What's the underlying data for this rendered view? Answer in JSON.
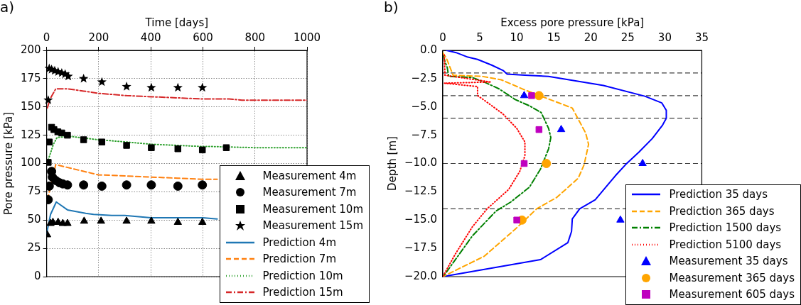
{
  "chart_data": [
    {
      "type": "line",
      "title": "a)",
      "xlabel": "Time [days]",
      "ylabel": "Pore pressure [kPa]",
      "xlim": [
        0,
        1000
      ],
      "xticks": [
        0,
        200,
        400,
        600,
        800,
        1000
      ],
      "ylim": [
        0,
        200
      ],
      "yticks": [
        0,
        25,
        50,
        75,
        100,
        125,
        150,
        175,
        200
      ],
      "grid": true,
      "legend": "bottom right",
      "series": [
        {
          "name": "Measurement 4m",
          "type": "scatter",
          "marker": "triangle",
          "color": "#000000",
          "x": [
            2,
            15,
            24,
            44,
            62,
            80,
            144,
            209,
            307,
            402,
            504,
            598
          ],
          "values": [
            37,
            47,
            48,
            48,
            47,
            47,
            49,
            49,
            49,
            49,
            48,
            48
          ]
        },
        {
          "name": "Measurement 7m",
          "type": "scatter",
          "marker": "circle",
          "color": "#000000",
          "x": [
            6,
            10,
            19,
            22,
            35,
            49,
            62,
            80,
            142,
            212,
            307,
            402,
            504,
            598
          ],
          "values": [
            68,
            80,
            93,
            88,
            85,
            83,
            82,
            81,
            81,
            80,
            81,
            81,
            80,
            81
          ]
        },
        {
          "name": "Measurement 10m",
          "type": "scatter",
          "marker": "square",
          "color": "#000000",
          "x": [
            6,
            10,
            19,
            28,
            43,
            58,
            80,
            142,
            212,
            307,
            402,
            504,
            598,
            690
          ],
          "values": [
            101,
            119,
            132,
            130,
            128,
            127,
            125,
            121,
            119,
            116,
            114,
            113,
            112,
            114
          ]
        },
        {
          "name": "Measurement 15m",
          "type": "scatter",
          "marker": "star",
          "color": "#000000",
          "x": [
            6,
            10,
            19,
            31,
            44,
            58,
            71,
            83,
            142,
            212,
            307,
            402,
            504,
            598
          ],
          "values": [
            156,
            184,
            183,
            182,
            181,
            180,
            179,
            177,
            175,
            172,
            168,
            167,
            167,
            167
          ]
        },
        {
          "name": "Prediction 4m",
          "type": "line",
          "line_style": "solid",
          "color": "#1f77b4",
          "x": [
            0,
            15,
            37,
            80,
            150,
            180,
            250,
            300,
            400,
            600,
            655
          ],
          "values": [
            38,
            55,
            66,
            59,
            56,
            55,
            54,
            54,
            52,
            52,
            51
          ]
        },
        {
          "name": "Prediction 7m",
          "type": "line",
          "line_style": "dashed",
          "color": "#ff7f0e",
          "x": [
            3,
            35,
            198,
            307,
            402,
            504,
            598,
            655
          ],
          "values": [
            68,
            99,
            90,
            89,
            88,
            87,
            86,
            86
          ]
        },
        {
          "name": "Prediction 10m",
          "type": "line",
          "line_style": "dotted",
          "color": "#2ca02c",
          "x": [
            3,
            26,
            40,
            90,
            198,
            307,
            402,
            504,
            598,
            633,
            800,
            1000
          ],
          "values": [
            101,
            117,
            123,
            124,
            121,
            119,
            117,
            116,
            115,
            115,
            114,
            114
          ]
        },
        {
          "name": "Prediction 15m",
          "type": "line",
          "line_style": "dashdot",
          "color": "#d62728",
          "x": [
            3,
            13,
            35,
            80,
            142,
            200,
            307,
            402,
            504,
            598,
            700,
            750,
            1000
          ],
          "values": [
            149,
            157,
            166,
            166,
            164,
            162,
            160,
            159,
            158,
            157,
            157,
            156,
            156
          ]
        }
      ]
    },
    {
      "type": "line",
      "title": "b)",
      "xlabel": "Excess pore pressure [kPa]",
      "ylabel": "Depth [m]",
      "xlim": [
        0,
        35
      ],
      "xticks": [
        0,
        5,
        10,
        15,
        20,
        25,
        30,
        35
      ],
      "ylim": [
        -20,
        0
      ],
      "yticks": [
        {
          "value": 0,
          "label": "0.0"
        },
        {
          "value": -2.5,
          "label": "−2.5"
        },
        {
          "value": -5,
          "label": "−5.0"
        },
        {
          "value": -7.5,
          "label": "−7.5"
        },
        {
          "value": -10,
          "label": "−10.0"
        },
        {
          "value": -12.5,
          "label": "−12.5"
        },
        {
          "value": -15,
          "label": "−15.0"
        },
        {
          "value": -17.5,
          "label": "−17.5"
        },
        {
          "value": -20,
          "label": "−20.0"
        }
      ],
      "legend": "bottom right",
      "ref_lines": [
        {
          "axis": "y",
          "value": -2,
          "color": "#404040",
          "line_style": "dashed"
        },
        {
          "axis": "y",
          "value": -4,
          "color": "#404040",
          "line_style": "dashed"
        },
        {
          "axis": "y",
          "value": -6,
          "color": "#404040",
          "line_style": "dashed"
        },
        {
          "axis": "y",
          "value": -10,
          "color": "#404040",
          "line_style": "dashed"
        },
        {
          "axis": "y",
          "value": -14,
          "color": "#404040",
          "line_style": "dashed"
        }
      ],
      "series": [
        {
          "name": "Prediction 35 days",
          "type": "line",
          "line_style": "solid",
          "color": "#0000ff",
          "x": [
            0.5,
            1.8,
            3.4,
            4.7,
            6.6,
            8.2,
            8.7,
            11.1,
            14.3,
            20.7,
            21.7,
            27.3,
            29.6,
            30.2,
            30.2,
            29.7,
            28.3,
            26.5,
            24.7,
            23.3,
            20.6,
            18.5,
            17.5,
            17.4,
            16.9,
            13.2,
            0
          ],
          "values": [
            0,
            -0.2,
            -0.6,
            -0.8,
            -1.3,
            -1.8,
            -2.1,
            -2.2,
            -2.3,
            -3.0,
            -3.1,
            -4.05,
            -4.65,
            -5.3,
            -6.0,
            -6.6,
            -7.8,
            -9.0,
            -10.1,
            -11.1,
            -13.2,
            -14.0,
            -14.9,
            -16.0,
            -17.0,
            -18.5,
            -20
          ]
        },
        {
          "name": "Prediction 365 days",
          "type": "line",
          "line_style": "dashed",
          "color": "#ffa500",
          "x": [
            0,
            0.5,
            1.4,
            5.3,
            7.9,
            11.1,
            13.7,
            17.5,
            19.3,
            19.7,
            19.1,
            18.3,
            15.4,
            12.7,
            9.8,
            5.6,
            0
          ],
          "values": [
            -0.2,
            -0.7,
            -2.2,
            -2.3,
            -2.6,
            -3.5,
            -4.15,
            -5.1,
            -7.3,
            -8.3,
            -10.1,
            -11.3,
            -13.0,
            -14.0,
            -15.8,
            -18.2,
            -20
          ]
        },
        {
          "name": "Prediction 1500 days",
          "type": "line",
          "line_style": "dashdot",
          "color": "#008000",
          "x": [
            0.1,
            0.3,
            0.6,
            0.8,
            4.0,
            5.6,
            7.6,
            9.8,
            11.7,
            13.3,
            14.3,
            14.6,
            14.3,
            13.2,
            11.7,
            9.2,
            7.2,
            4.0,
            0.5,
            0
          ],
          "values": [
            -0.5,
            -1.0,
            -1.5,
            -2.3,
            -2.4,
            -2.8,
            -3.4,
            -4.35,
            -4.9,
            -5.5,
            -6.9,
            -7.7,
            -8.7,
            -10.5,
            -12.1,
            -13.4,
            -14.2,
            -16.4,
            -19.6,
            -20
          ]
        },
        {
          "name": "Prediction 5100 days",
          "type": "line",
          "line_style": "dotted",
          "color": "#ff0000",
          "x": [
            0.2,
            0.3,
            6.5,
            0.2,
            4.7,
            4.7,
            5.8,
            8.1,
            10.0,
            11.1,
            11.1,
            10.4,
            8.9,
            6.0,
            4.0,
            1.7,
            0
          ],
          "values": [
            -0.4,
            -2.2,
            -2.8,
            -2.9,
            -3.2,
            -4.0,
            -4.5,
            -5.6,
            -6.9,
            -8.1,
            -9.3,
            -10.7,
            -12.3,
            -14.0,
            -15.6,
            -18.0,
            -20
          ]
        },
        {
          "name": "Measurement 35 days",
          "type": "scatter",
          "marker": "triangle",
          "color": "#0000ff",
          "x": [
            11,
            16,
            27,
            24
          ],
          "values": [
            -4,
            -7,
            -10,
            -15
          ]
        },
        {
          "name": "Measurement 365 days",
          "type": "scatter",
          "marker": "circle",
          "color": "#ffa500",
          "x": [
            13,
            14,
            10.7
          ],
          "values": [
            -4,
            -10,
            -15
          ]
        },
        {
          "name": "Measurement 605 days",
          "type": "scatter",
          "marker": "square",
          "color": "#bf00bf",
          "x": [
            12,
            13,
            11,
            10
          ],
          "values": [
            -4,
            -7,
            -10,
            -15
          ]
        }
      ]
    }
  ]
}
